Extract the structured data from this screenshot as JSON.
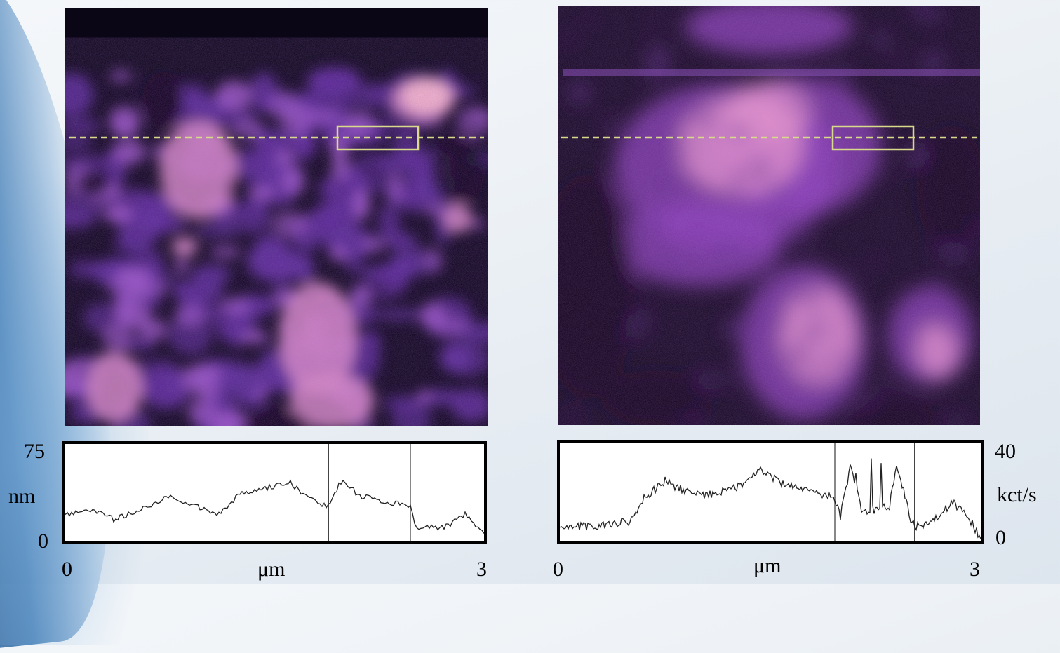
{
  "left_panel": {
    "y_max": "75",
    "y_unit": "nm",
    "y_min": "0",
    "x_min": "0",
    "x_unit": "μm",
    "x_max": "3"
  },
  "right_panel": {
    "y_max": "40",
    "y_unit": "kct/s",
    "y_min": "0",
    "x_min": "0",
    "x_unit": "μm",
    "x_max": "3"
  },
  "colors": {
    "colormap_low": "#0b0518",
    "colormap_mid": "#6a2ea8",
    "colormap_high": "#f3a6c6",
    "guide_line": "#d8d98a"
  }
}
